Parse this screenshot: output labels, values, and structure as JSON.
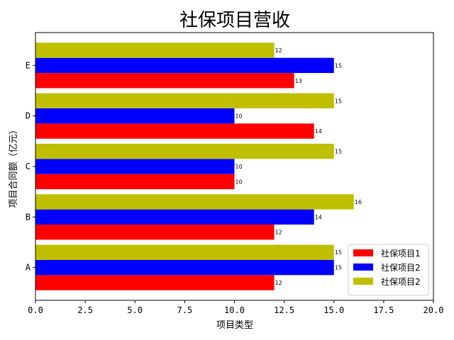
{
  "chart_data": {
    "type": "bar",
    "orientation": "horizontal",
    "title": "社保项目营收",
    "xlabel": "项目类型",
    "ylabel": "项目合同额（亿元）",
    "categories": [
      "A",
      "B",
      "C",
      "D",
      "E"
    ],
    "xlim": [
      0,
      20
    ],
    "xticks": [
      "0.0",
      "2.5",
      "5.0",
      "7.5",
      "10.0",
      "12.5",
      "15.0",
      "17.5",
      "20.0"
    ],
    "legend_position": "lower-right",
    "grid": false,
    "series": [
      {
        "name": "社保项目1",
        "color": "#ff0000",
        "values": [
          12,
          12,
          10,
          14,
          13
        ]
      },
      {
        "name": "社保项目2",
        "color": "#0000ff",
        "values": [
          15,
          14,
          10,
          10,
          15
        ]
      },
      {
        "name": "社保项目2",
        "color": "#bfbf00",
        "values": [
          15,
          16,
          15,
          15,
          12
        ]
      }
    ]
  }
}
